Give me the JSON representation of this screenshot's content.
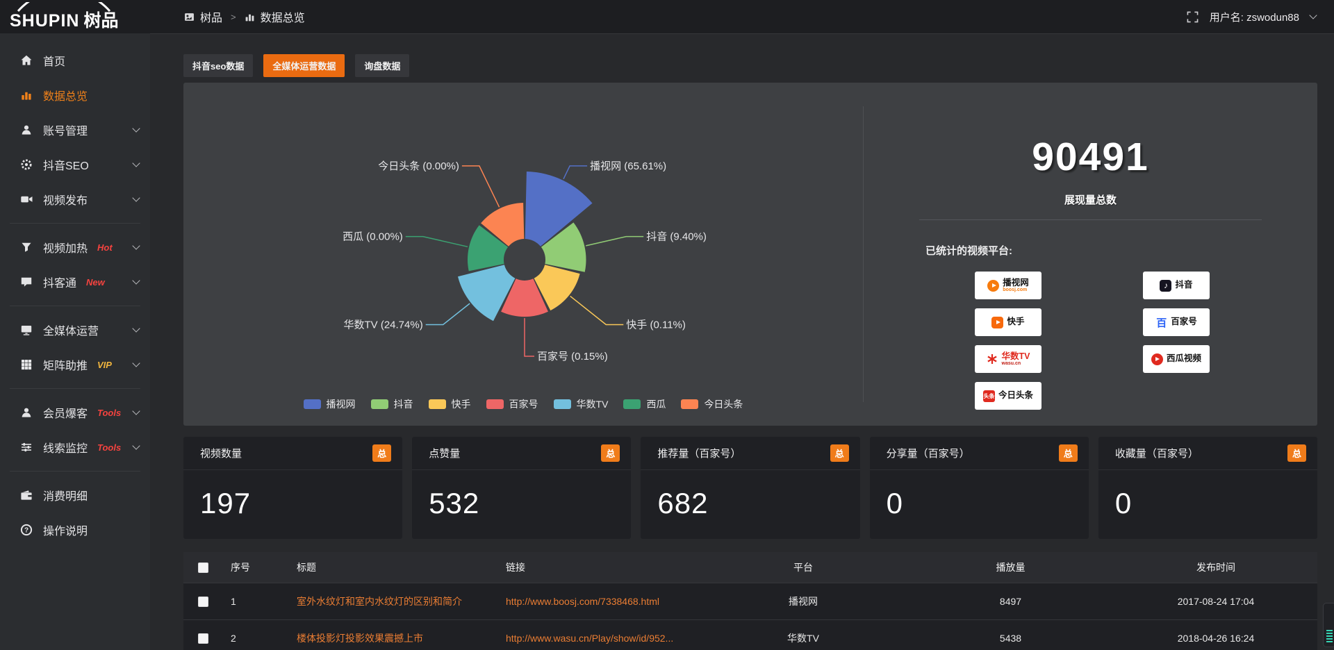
{
  "topbar": {
    "logo_text": "SHUPIN",
    "logo_cn": "树品",
    "breadcrumb": {
      "root": "树品",
      "separator": ">",
      "current": "数据总览"
    },
    "user_label": "用户名: zswodun88"
  },
  "sidebar": {
    "items": [
      {
        "label": "首页",
        "icon": "home",
        "active": false,
        "chevron": false,
        "badge": "",
        "badge_color": "",
        "divider_after": false
      },
      {
        "label": "数据总览",
        "icon": "chart",
        "active": true,
        "chevron": false,
        "badge": "",
        "badge_color": "",
        "divider_after": false
      },
      {
        "label": "账号管理",
        "icon": "user",
        "active": false,
        "chevron": true,
        "badge": "",
        "badge_color": "",
        "divider_after": false
      },
      {
        "label": "抖音SEO",
        "icon": "gear",
        "active": false,
        "chevron": true,
        "badge": "",
        "badge_color": "",
        "divider_after": false
      },
      {
        "label": "视频发布",
        "icon": "video",
        "active": false,
        "chevron": true,
        "badge": "",
        "badge_color": "",
        "divider_after": true
      },
      {
        "label": "视频加热",
        "icon": "funnel",
        "active": false,
        "chevron": true,
        "badge": "Hot",
        "badge_color": "#f5433f",
        "divider_after": false
      },
      {
        "label": "抖客通",
        "icon": "comment",
        "active": false,
        "chevron": true,
        "badge": "New",
        "badge_color": "#f5433f",
        "divider_after": true
      },
      {
        "label": "全媒体运营",
        "icon": "monitor",
        "active": false,
        "chevron": true,
        "badge": "",
        "badge_color": "",
        "divider_after": false
      },
      {
        "label": "矩阵助推",
        "icon": "grid",
        "active": false,
        "chevron": true,
        "badge": "VIP",
        "badge_color": "#f0b53e",
        "divider_after": true
      },
      {
        "label": "会员爆客",
        "icon": "user",
        "active": false,
        "chevron": true,
        "badge": "Tools",
        "badge_color": "#f5433f",
        "divider_after": false
      },
      {
        "label": "线索监控",
        "icon": "sliders",
        "active": false,
        "chevron": true,
        "badge": "Tools",
        "badge_color": "#f5433f",
        "divider_after": true
      },
      {
        "label": "消费明细",
        "icon": "wallet",
        "active": false,
        "chevron": false,
        "badge": "",
        "badge_color": "",
        "divider_after": false
      },
      {
        "label": "操作说明",
        "icon": "question",
        "active": false,
        "chevron": false,
        "badge": "",
        "badge_color": "",
        "divider_after": false
      }
    ]
  },
  "tabs": [
    {
      "label": "抖音seo数据",
      "active": false
    },
    {
      "label": "全媒体运营数据",
      "active": true
    },
    {
      "label": "询盘数据",
      "active": false
    }
  ],
  "chart_data": {
    "type": "pie",
    "subtype": "nightingale-rose",
    "label_format": "{name} ({pct}%)",
    "legend_position": "bottom",
    "series": [
      {
        "name": "播视网",
        "percent": 65.61,
        "color": "#5470c6"
      },
      {
        "name": "抖音",
        "percent": 9.4,
        "color": "#91cc75"
      },
      {
        "name": "快手",
        "percent": 0.11,
        "color": "#fac858"
      },
      {
        "name": "百家号",
        "percent": 0.15,
        "color": "#ee6666"
      },
      {
        "name": "华数TV",
        "percent": 24.74,
        "color": "#73c0de"
      },
      {
        "name": "西瓜",
        "percent": 0.0,
        "color": "#3ba272"
      },
      {
        "name": "今日头条",
        "percent": 0.0,
        "color": "#fc8452"
      }
    ]
  },
  "summary": {
    "total_value": "90491",
    "total_label": "展现量总数",
    "platforms_title": "已统计的视频平台:",
    "platforms": [
      {
        "name": "播视网",
        "sub": "boosj.com",
        "style": "boosj",
        "column": 1
      },
      {
        "name": "快手",
        "sub": "",
        "style": "kuaishou",
        "column": 1
      },
      {
        "name": "华数TV",
        "sub": "wasu.cn",
        "style": "wasu",
        "column": 1
      },
      {
        "name": "今日头条",
        "sub": "",
        "style": "toutiao",
        "column": 1
      },
      {
        "name": "抖音",
        "sub": "",
        "style": "douyin",
        "column": 2
      },
      {
        "name": "百家号",
        "sub": "",
        "style": "baijiahao",
        "column": 2
      },
      {
        "name": "西瓜视频",
        "sub": "",
        "style": "xigua",
        "column": 2
      }
    ]
  },
  "stat_cards": [
    {
      "label": "视频数量",
      "badge": "总",
      "value": "197"
    },
    {
      "label": "点赞量",
      "badge": "总",
      "value": "532"
    },
    {
      "label": "推荐量（百家号）",
      "badge": "总",
      "value": "682"
    },
    {
      "label": "分享量（百家号）",
      "badge": "总",
      "value": "0"
    },
    {
      "label": "收藏量（百家号）",
      "badge": "总",
      "value": "0"
    }
  ],
  "table": {
    "headers": [
      "序号",
      "标题",
      "链接",
      "平台",
      "播放量",
      "发布时间"
    ],
    "rows": [
      {
        "num": "1",
        "title": "室外水纹灯和室内水纹灯的区别和简介",
        "link": "http://www.boosj.com/7338468.html",
        "platform": "播视网",
        "plays": "8497",
        "time": "2017-08-24 17:04"
      },
      {
        "num": "2",
        "title": "楼体投影灯投影效果震撼上市",
        "link": "http://www.wasu.cn/Play/show/id/952...",
        "platform": "华数TV",
        "plays": "5438",
        "time": "2018-04-26 16:24"
      }
    ]
  },
  "colors": {
    "accent_orange": "#ea6b11",
    "badge_orange": "#f07c1a",
    "active_menu_orange": "#f0811a",
    "link_orange": "#ea7d33",
    "panel_grey": "#3e4043",
    "card_dark": "#1f2024"
  }
}
